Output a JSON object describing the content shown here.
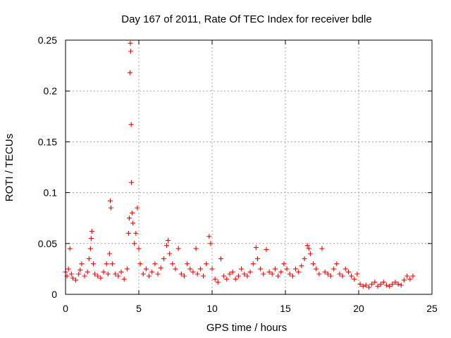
{
  "chart_data": {
    "type": "scatter",
    "title": "Day 167 of 2011, Rate Of TEC Index for receiver bdle",
    "xlabel": "GPS time / hours",
    "ylabel": "ROTI / TECUs",
    "xlim": [
      0,
      25
    ],
    "ylim": [
      0,
      0.25
    ],
    "x_ticks": [
      0,
      5,
      10,
      15,
      20,
      25
    ],
    "x_tick_labels": [
      "0",
      "5",
      "10",
      "15",
      "20",
      "25"
    ],
    "y_ticks": [
      0,
      0.05,
      0.1,
      0.15,
      0.2,
      0.25
    ],
    "y_tick_labels": [
      "0",
      "0.05",
      "0.1",
      "0.15",
      "0.2",
      "0.25"
    ],
    "grid": true,
    "marker": "+",
    "marker_color": "#ff0000",
    "series": [
      {
        "name": "ROTI",
        "x": [
          0.0,
          0.1,
          0.2,
          0.3,
          0.4,
          0.5,
          0.7,
          0.9,
          1.0,
          1.1,
          1.3,
          1.5,
          1.6,
          1.7,
          1.75,
          1.8,
          1.9,
          2.0,
          2.2,
          2.4,
          2.6,
          2.8,
          2.9,
          3.0,
          3.05,
          3.1,
          3.2,
          3.4,
          3.6,
          3.8,
          4.0,
          4.2,
          4.3,
          4.35,
          4.4,
          4.42,
          4.45,
          4.48,
          4.5,
          4.55,
          4.6,
          4.7,
          4.8,
          4.9,
          5.0,
          5.1,
          5.3,
          5.5,
          5.7,
          5.9,
          6.1,
          6.3,
          6.5,
          6.7,
          6.9,
          7.0,
          7.1,
          7.3,
          7.5,
          7.7,
          7.9,
          8.1,
          8.3,
          8.5,
          8.7,
          8.9,
          9.0,
          9.2,
          9.4,
          9.6,
          9.8,
          9.9,
          10.0,
          10.2,
          10.4,
          10.6,
          10.8,
          11.0,
          11.2,
          11.4,
          11.6,
          11.8,
          12.0,
          12.2,
          12.4,
          12.6,
          12.8,
          13.0,
          13.1,
          13.3,
          13.5,
          13.7,
          13.9,
          14.1,
          14.3,
          14.5,
          14.7,
          14.9,
          15.1,
          15.3,
          15.5,
          15.7,
          15.9,
          16.1,
          16.3,
          16.5,
          16.6,
          16.7,
          16.9,
          17.1,
          17.3,
          17.5,
          17.7,
          17.9,
          18.1,
          18.3,
          18.5,
          18.7,
          18.9,
          19.1,
          19.3,
          19.5,
          19.7,
          19.9,
          20.1,
          20.3,
          20.5,
          20.7,
          20.9,
          21.1,
          21.3,
          21.5,
          21.7,
          21.9,
          22.1,
          22.3,
          22.5,
          22.7,
          22.9,
          23.1,
          23.3,
          23.5,
          23.7
        ],
        "y": [
          0.022,
          0.018,
          0.025,
          0.045,
          0.02,
          0.016,
          0.014,
          0.02,
          0.024,
          0.03,
          0.018,
          0.022,
          0.035,
          0.045,
          0.055,
          0.062,
          0.03,
          0.02,
          0.018,
          0.016,
          0.022,
          0.03,
          0.02,
          0.04,
          0.092,
          0.085,
          0.03,
          0.02,
          0.018,
          0.022,
          0.015,
          0.025,
          0.06,
          0.075,
          0.218,
          0.247,
          0.239,
          0.167,
          0.11,
          0.08,
          0.07,
          0.05,
          0.06,
          0.085,
          0.045,
          0.03,
          0.02,
          0.025,
          0.018,
          0.022,
          0.03,
          0.02,
          0.026,
          0.035,
          0.048,
          0.053,
          0.04,
          0.03,
          0.025,
          0.045,
          0.02,
          0.018,
          0.03,
          0.025,
          0.022,
          0.045,
          0.02,
          0.025,
          0.018,
          0.03,
          0.057,
          0.05,
          0.025,
          0.015,
          0.012,
          0.035,
          0.018,
          0.015,
          0.02,
          0.022,
          0.015,
          0.018,
          0.025,
          0.02,
          0.018,
          0.022,
          0.03,
          0.046,
          0.035,
          0.025,
          0.02,
          0.044,
          0.022,
          0.02,
          0.025,
          0.018,
          0.022,
          0.03,
          0.025,
          0.02,
          0.018,
          0.025,
          0.022,
          0.028,
          0.035,
          0.048,
          0.045,
          0.04,
          0.03,
          0.025,
          0.02,
          0.045,
          0.022,
          0.02,
          0.018,
          0.025,
          0.03,
          0.02,
          0.018,
          0.025,
          0.022,
          0.018,
          0.015,
          0.02,
          0.01,
          0.008,
          0.009,
          0.007,
          0.01,
          0.012,
          0.008,
          0.01,
          0.012,
          0.009,
          0.008,
          0.01,
          0.012,
          0.01,
          0.009,
          0.014,
          0.018,
          0.015,
          0.018
        ]
      }
    ]
  }
}
